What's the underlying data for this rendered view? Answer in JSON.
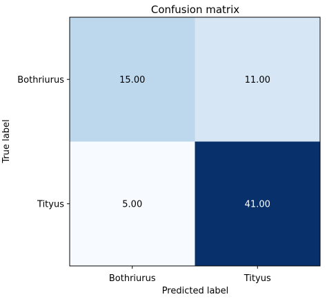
{
  "chart_data": {
    "type": "heatmap",
    "title": "Confusion matrix",
    "xlabel": "Predicted label",
    "ylabel": "True label",
    "x_categories": [
      "Bothriurus",
      "Tityus"
    ],
    "y_categories": [
      "Bothriurus",
      "Tityus"
    ],
    "matrix": [
      [
        15,
        11
      ],
      [
        5,
        41
      ]
    ],
    "cell_labels": [
      [
        "15.00",
        "11.00"
      ],
      [
        "5.00",
        "41.00"
      ]
    ],
    "colormap": "Blues",
    "value_range": [
      5,
      41
    ],
    "colors": {
      "low": "#f7fbff",
      "high": "#08306b",
      "text_dark": "#000000",
      "text_light": "#ffffff"
    }
  }
}
